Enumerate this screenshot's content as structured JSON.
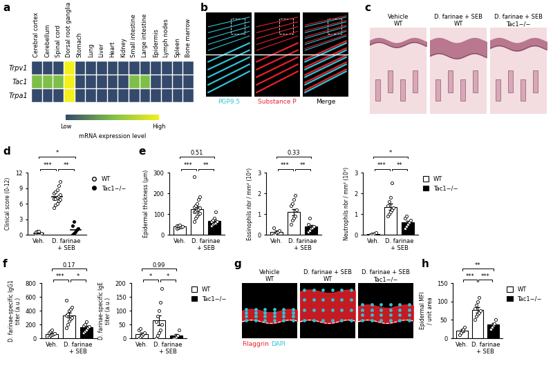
{
  "chart_data": [
    {
      "panel": "a",
      "type": "heatmap",
      "rows": [
        "Trpv1",
        "Tac1",
        "Trpa1"
      ],
      "columns": [
        "Cerebral cortex",
        "Cerebellum",
        "Spinal cord",
        "Dorsal root ganglia",
        "Stomach",
        "Lung",
        "Liver",
        "Heart",
        "Kidney",
        "Small intestine",
        "Large intestine",
        "Epidermis",
        "Lymph nodes",
        "Spleen",
        "Bone marrow"
      ],
      "cells": [
        [
          0,
          0,
          0,
          1,
          0,
          0,
          0,
          0,
          0,
          0,
          0,
          0,
          0,
          0,
          0
        ],
        [
          0.5,
          0.5,
          0.5,
          1,
          0,
          0,
          0,
          0,
          0,
          0.5,
          0.5,
          0,
          0,
          0,
          0
        ],
        [
          0,
          0,
          0,
          1,
          0,
          0,
          0,
          0,
          0,
          0,
          0,
          0,
          0,
          0,
          0
        ]
      ],
      "colorbar": {
        "label": "mRNA expression level",
        "range": [
          0,
          1
        ],
        "ticks": [
          {
            "value": 0,
            "label": "Low"
          },
          {
            "value": 1,
            "label": "High"
          }
        ]
      }
    },
    {
      "panel": "d",
      "type": "scatter",
      "categories": [
        "Veh.",
        "D. farinae\n+ SEB",
        null
      ],
      "ylabel": "Clinical score (0-12)",
      "ylim": [
        0,
        12
      ],
      "yticks": [
        0,
        3,
        6,
        9,
        12
      ],
      "legend": "right",
      "series": [
        {
          "name": "WT",
          "color": "#000000",
          "marker": "open",
          "values": [
            0.25,
            7.3,
            null
          ],
          "points": [
            [
              0,
              0,
              0,
              0,
              0.3,
              0.5,
              0.7,
              0.7
            ],
            [
              5.2,
              5.8,
              6,
              6.5,
              6.8,
              7,
              7,
              7.2,
              7.5,
              7.8,
              8,
              8.3,
              8.7,
              9.5,
              10.3
            ],
            null
          ]
        },
        {
          "name": "Tac1−/−",
          "color": "#000000",
          "marker": "filled",
          "values": [
            null,
            null,
            1.0
          ],
          "points": [
            null,
            null,
            [
              0,
              0.3,
              0.5,
              1,
              1.2,
              1.8,
              2.5
            ]
          ]
        }
      ],
      "annotations": [
        {
          "from": 0,
          "to": 2,
          "text": "*"
        },
        {
          "from": 0,
          "to": 1,
          "text": "***"
        },
        {
          "from": 1,
          "to": 2,
          "text": "**"
        }
      ]
    },
    {
      "panel": "e",
      "type": "bar",
      "categories": [
        "Veh.",
        "D. farinae\n+ SEB",
        null
      ],
      "ylabel": "Epidermal thickness (µm)",
      "ylim": [
        0,
        300
      ],
      "yticks": [
        0,
        100,
        200,
        300
      ],
      "series": [
        {
          "color": "#ffffff",
          "marker": "open",
          "values": [
            40,
            125,
            null
          ],
          "errors": [
            3,
            12,
            null
          ],
          "points": [
            [
              30,
              33,
              36,
              38,
              40,
              42,
              45,
              48
            ],
            [
              65,
              80,
              90,
              100,
              105,
              110,
              115,
              120,
              125,
              130,
              135,
              140,
              150,
              170,
              185,
              280
            ],
            null
          ]
        },
        {
          "color": "#000000",
          "marker": "open",
          "values": [
            null,
            null,
            66
          ],
          "errors": [
            null,
            null,
            7
          ],
          "points": [
            null,
            null,
            [
              45,
              50,
              55,
              58,
              62,
              65,
              70,
              80,
              110
            ]
          ]
        }
      ],
      "annotations": [
        {
          "from": 0,
          "to": 2,
          "text": "0.51"
        },
        {
          "from": 0,
          "to": 1,
          "text": "***"
        },
        {
          "from": 1,
          "to": 2,
          "text": "**"
        }
      ]
    },
    {
      "type": "bar",
      "categories": [
        "Veh.",
        "D. farinae\n+ SEB",
        null
      ],
      "ylabel": "Eosinophils nbr / mm² (10³)",
      "ylim": [
        0,
        3
      ],
      "yticks": [
        0,
        1,
        2,
        3
      ],
      "series": [
        {
          "color": "#ffffff",
          "marker": "open",
          "values": [
            0.14,
            1.1,
            null
          ],
          "errors": [
            0.05,
            0.15,
            null
          ],
          "points": [
            [
              0,
              0.05,
              0.1,
              0.15,
              0.2,
              0.35
            ],
            [
              0.5,
              0.7,
              0.8,
              0.9,
              1.2,
              1.4,
              1.5,
              1.7,
              1.9
            ],
            null
          ]
        },
        {
          "color": "#000000",
          "marker": "open",
          "values": [
            null,
            null,
            0.4
          ],
          "errors": [
            null,
            null,
            0.08
          ],
          "points": [
            null,
            null,
            [
              0.15,
              0.2,
              0.3,
              0.35,
              0.4,
              0.5,
              0.8
            ]
          ]
        }
      ],
      "annotations": [
        {
          "from": 0,
          "to": 2,
          "text": "0.33"
        },
        {
          "from": 0,
          "to": 1,
          "text": "***"
        },
        {
          "from": 1,
          "to": 2,
          "text": "**"
        }
      ]
    },
    {
      "type": "bar",
      "categories": [
        "Veh.",
        "D. farinae\n+ SEB",
        null
      ],
      "ylabel": "Neutrophils nbr / mm² (10³)",
      "ylim": [
        0,
        3
      ],
      "yticks": [
        0,
        1,
        2,
        3
      ],
      "legend": "right",
      "series": [
        {
          "name": "WT",
          "color": "#ffffff",
          "marker": "open",
          "values": [
            0.05,
            1.35,
            null
          ],
          "errors": [
            0.02,
            0.15,
            null
          ],
          "points": [
            [
              0,
              0.02,
              0.05,
              0.08,
              0.1
            ],
            [
              0.9,
              1,
              1.1,
              1.2,
              1.3,
              1.4,
              1.6,
              1.8,
              2.5
            ],
            null
          ]
        },
        {
          "name": "Tac1−/−",
          "color": "#000000",
          "marker": "open",
          "values": [
            null,
            null,
            0.6
          ],
          "errors": [
            null,
            null,
            0.08
          ],
          "points": [
            null,
            null,
            [
              0.3,
              0.4,
              0.5,
              0.6,
              0.7,
              0.8,
              0.9
            ]
          ]
        }
      ],
      "annotations": [
        {
          "from": 0,
          "to": 2,
          "text": "*"
        },
        {
          "from": 0,
          "to": 1,
          "text": "***"
        },
        {
          "from": 1,
          "to": 2,
          "text": "**"
        }
      ]
    },
    {
      "panel": "f",
      "type": "bar",
      "categories": [
        "Veh.",
        "D. farinae\n+ SEB",
        null
      ],
      "ylabel": "D. farinae-specific IgG1\ntiter (a.u.)",
      "ylim": [
        0,
        800
      ],
      "yticks": [
        0,
        200,
        400,
        600,
        800
      ],
      "series": [
        {
          "color": "#ffffff",
          "marker": "open",
          "values": [
            65,
            335,
            null
          ],
          "errors": [
            12,
            35,
            null
          ],
          "points": [
            [
              20,
              40,
              50,
              60,
              70,
              80,
              100,
              120
            ],
            [
              150,
              200,
              250,
              280,
              300,
              330,
              350,
              400,
              420,
              450,
              550
            ],
            null
          ]
        },
        {
          "color": "#000000",
          "marker": "open",
          "values": [
            null,
            null,
            165
          ],
          "errors": [
            null,
            null,
            20
          ],
          "points": [
            null,
            null,
            [
              80,
              100,
              120,
              150,
              170,
              180,
              200,
              240
            ]
          ]
        }
      ],
      "annotations": [
        {
          "from": 0,
          "to": 2,
          "text": "0.17"
        },
        {
          "from": 0,
          "to": 1,
          "text": "***"
        },
        {
          "from": 1,
          "to": 2,
          "text": "*"
        }
      ]
    },
    {
      "type": "bar",
      "categories": [
        "Veh.",
        "D. farinae\n+ SEB",
        null
      ],
      "ylabel": "D. farinae-specific IgE\ntiter (a.u.)",
      "ylim": [
        0,
        200
      ],
      "yticks": [
        0,
        50,
        100,
        150,
        200
      ],
      "legend": "right",
      "series": [
        {
          "name": "WT",
          "color": "#ffffff",
          "marker": "open",
          "values": [
            15,
            65,
            null
          ],
          "errors": [
            5,
            18,
            null
          ],
          "points": [
            [
              0,
              5,
              10,
              15,
              20,
              30,
              35
            ],
            [
              0,
              10,
              20,
              30,
              50,
              60,
              80,
              100,
              130,
              180
            ],
            null
          ]
        },
        {
          "name": "Tac1−/−",
          "color": "#000000",
          "marker": "open",
          "values": [
            null,
            null,
            10
          ],
          "errors": [
            null,
            null,
            6
          ],
          "points": [
            null,
            null,
            [
              0,
              0,
              5,
              10,
              30
            ]
          ]
        }
      ],
      "annotations": [
        {
          "from": 0,
          "to": 2,
          "text": "0.99"
        },
        {
          "from": 0,
          "to": 1,
          "text": "*"
        },
        {
          "from": 1,
          "to": 2,
          "text": "*"
        }
      ]
    },
    {
      "panel": "h",
      "type": "bar",
      "categories": [
        "Veh.",
        "D. farinae\n+ SEB",
        null
      ],
      "ylabel": "Epidermal MFI\n/ unit area",
      "ylim": [
        0,
        150
      ],
      "yticks": [
        0,
        50,
        100,
        150
      ],
      "legend": "right",
      "series": [
        {
          "name": "WT",
          "color": "#ffffff",
          "marker": "open",
          "values": [
            20,
            77,
            null
          ],
          "errors": [
            4,
            7,
            null
          ],
          "points": [
            [
              10,
              15,
              20,
              25,
              30
            ],
            [
              50,
              60,
              65,
              70,
              75,
              80,
              90,
              100,
              110
            ],
            null
          ]
        },
        {
          "name": "Tac1−/−",
          "color": "#000000",
          "marker": "open",
          "values": [
            null,
            null,
            37
          ],
          "errors": [
            null,
            null,
            5
          ],
          "points": [
            null,
            null,
            [
              25,
              30,
              35,
              40,
              50
            ]
          ]
        }
      ],
      "annotations": [
        {
          "from": 0,
          "to": 2,
          "text": "**"
        },
        {
          "from": 0,
          "to": 1,
          "text": "***"
        },
        {
          "from": 1,
          "to": 2,
          "text": "***"
        }
      ]
    }
  ],
  "images": [
    {
      "panel": "b",
      "type": "image",
      "labels": [
        {
          "text": "PGP9.5",
          "color": "#2ec4d6"
        },
        {
          "text": "Substance P",
          "color": "#e8202a"
        },
        {
          "text": "Merge",
          "color": "#000000"
        }
      ]
    },
    {
      "panel": "c",
      "type": "image",
      "titles": [
        "Vehicle\nWT",
        "D. farinae + SEB\nWT",
        "D. farinae + SEB\nTac1−/−"
      ]
    },
    {
      "panel": "g",
      "type": "image",
      "titles": [
        "Vehicle\nWT",
        "D. farinae + SEB\nWT",
        "D. farinae + SEB\nTac1−/−"
      ],
      "labels": [
        {
          "text": "Filaggrin",
          "color": "#e8202a"
        },
        {
          "text": "DAPI",
          "color": "#2ec4d6"
        }
      ]
    }
  ]
}
